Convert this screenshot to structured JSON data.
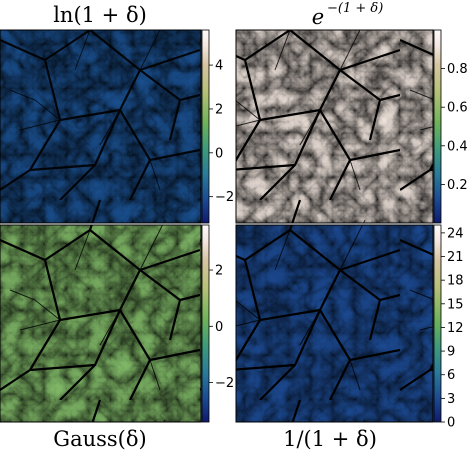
{
  "titles": {
    "top_left": "ln(1 + δ)",
    "top_right_base": "e",
    "top_right_exponent": "−(1 + δ)",
    "bottom_left": "Gauss(δ)",
    "bottom_right": "1/(1 + δ)"
  },
  "chart_data": [
    {
      "type": "heatmap",
      "title": "ln(1 + δ)",
      "colormap": "gist_earth",
      "colorbar": {
        "ticks": [
          -2,
          0,
          2,
          4
        ],
        "range": [
          -3.2,
          5.6
        ]
      }
    },
    {
      "type": "heatmap",
      "title": "e^−(1 + δ)",
      "colormap": "gist_earth",
      "colorbar": {
        "ticks": [
          0.2,
          0.4,
          0.6,
          0.8
        ],
        "range": [
          0.0,
          1.0
        ]
      }
    },
    {
      "type": "heatmap",
      "title": "Gauss(δ)",
      "colormap": "gist_earth",
      "colorbar": {
        "ticks": [
          -2,
          0,
          2
        ],
        "range": [
          -3.4,
          3.6
        ]
      }
    },
    {
      "type": "heatmap",
      "title": "1/(1 + δ)",
      "colormap": "gist_earth",
      "colorbar": {
        "ticks": [
          0,
          3,
          6,
          9,
          12,
          15,
          18,
          21,
          24
        ],
        "range": [
          0,
          25
        ]
      }
    }
  ],
  "colors": {
    "cmap_stops": [
      "#0f1a6e",
      "#1c4a92",
      "#2a7a9a",
      "#3d9a7c",
      "#6fb25a",
      "#b6c178",
      "#d7c4a2",
      "#f3e8e2",
      "#fdfafa"
    ]
  }
}
